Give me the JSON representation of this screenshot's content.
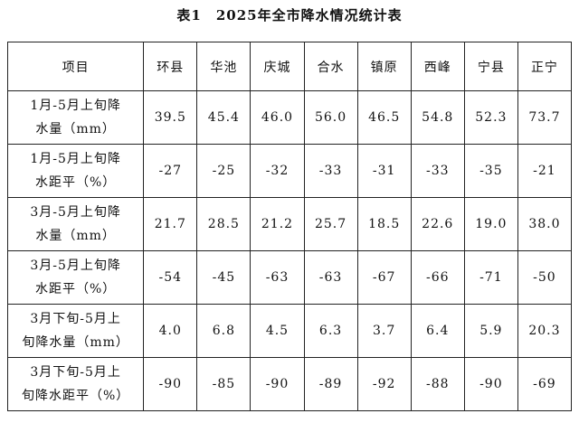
{
  "title": "表1　2025年全市降水情况统计表",
  "table": {
    "header": [
      "项目",
      "环县",
      "华池",
      "庆城",
      "合水",
      "镇原",
      "西峰",
      "宁县",
      "正宁"
    ],
    "rows": [
      {
        "label": [
          "1月-5月上旬降",
          "水量（mm）"
        ],
        "values": [
          "39.5",
          "45.4",
          "46.0",
          "56.0",
          "46.5",
          "54.8",
          "52.3",
          "73.7"
        ]
      },
      {
        "label": [
          "1月-5月上旬降",
          "水距平（%）"
        ],
        "values": [
          "-27",
          "-25",
          "-32",
          "-33",
          "-31",
          "-33",
          "-35",
          "-21"
        ]
      },
      {
        "label": [
          "3月-5月上旬降",
          "水量（mm）"
        ],
        "values": [
          "21.7",
          "28.5",
          "21.2",
          "25.7",
          "18.5",
          "22.6",
          "19.0",
          "38.0"
        ]
      },
      {
        "label": [
          "3月-5月上旬降",
          "水距平（%）"
        ],
        "values": [
          "-54",
          "-45",
          "-63",
          "-63",
          "-67",
          "-66",
          "-71",
          "-50"
        ]
      },
      {
        "label": [
          "3月下旬-5月上",
          "旬降水量（mm）"
        ],
        "values": [
          "4.0",
          "6.8",
          "4.5",
          "6.3",
          "3.7",
          "6.4",
          "5.9",
          "20.3"
        ]
      },
      {
        "label": [
          "3月下旬-5月上",
          "旬降水距平（%）"
        ],
        "values": [
          "-90",
          "-85",
          "-90",
          "-89",
          "-92",
          "-88",
          "-90",
          "-69"
        ]
      }
    ]
  }
}
